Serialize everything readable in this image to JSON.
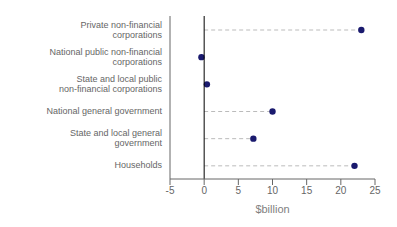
{
  "chart_data": {
    "type": "dot",
    "orientation": "horizontal",
    "categories": [
      "Private non-financial corporations",
      "National public non-financial corporations",
      "State and local public non-financial corporations",
      "National general government",
      "State and local general government",
      "Households"
    ],
    "values": [
      23.0,
      -0.4,
      0.4,
      10.0,
      7.2,
      22.0
    ],
    "color": "#1a1a6e",
    "marker": "circle",
    "line_style": "dashed",
    "xlabel": "$billion",
    "xlim": [
      -5,
      25
    ],
    "xticks": [
      -5,
      0,
      5,
      10,
      15,
      20,
      25
    ],
    "grid": false
  }
}
